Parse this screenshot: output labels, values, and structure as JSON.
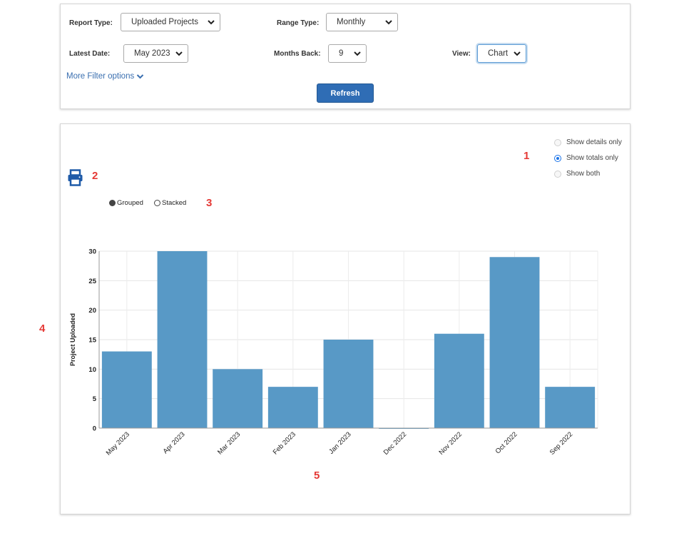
{
  "filters": {
    "report_type_label": "Report Type:",
    "report_type_value": "Uploaded Projects",
    "range_type_label": "Range Type:",
    "range_type_value": "Monthly",
    "latest_date_label": "Latest Date:",
    "latest_date_value": "May 2023",
    "months_back_label": "Months Back:",
    "months_back_value": "9",
    "view_label": "View:",
    "view_value": "Chart",
    "more_filters_label": "More Filter options",
    "refresh_label": "Refresh"
  },
  "display_options": {
    "items": [
      {
        "label": "Show details only",
        "checked": false
      },
      {
        "label": "Show totals only",
        "checked": true
      },
      {
        "label": "Show both",
        "checked": false
      }
    ]
  },
  "chart_mode": {
    "grouped_label": "Grouped",
    "stacked_label": "Stacked",
    "selected": "Grouped"
  },
  "print_icon": "printer-icon",
  "markers": [
    "1",
    "2",
    "3",
    "4",
    "5"
  ],
  "colors": {
    "accent": "#2f6db5",
    "bar": "#5899c6",
    "marker": "#e53935"
  },
  "chart_data": {
    "type": "bar",
    "categories": [
      "May 2023",
      "Apr 2023",
      "Mar 2023",
      "Feb 2023",
      "Jan 2023",
      "Dec 2022",
      "Nov 2022",
      "Oct 2022",
      "Sep 2022"
    ],
    "values": [
      13,
      30,
      10,
      7,
      15,
      0,
      16,
      29,
      7
    ],
    "ylabel": "Project Uploaded",
    "xlabel": "",
    "ylim": [
      0,
      30
    ],
    "yticks": [
      0,
      5,
      10,
      15,
      20,
      25,
      30
    ],
    "grid": true
  }
}
